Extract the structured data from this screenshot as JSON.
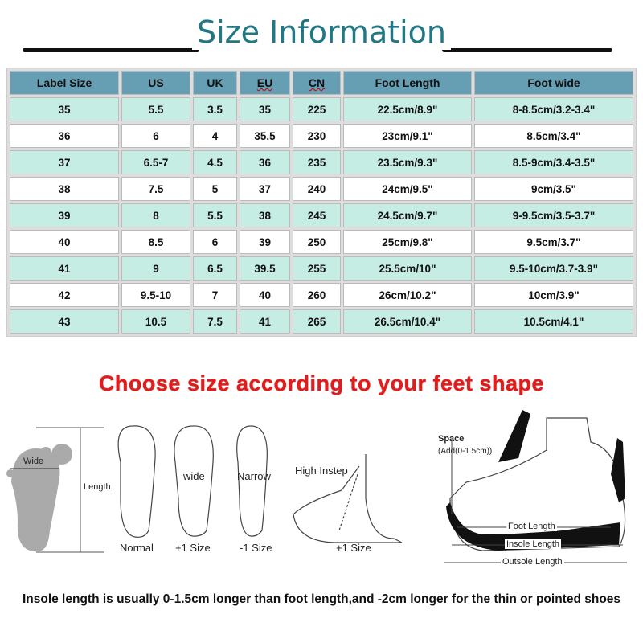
{
  "title": "Size Information",
  "table": {
    "headers": [
      "Label Size",
      "US",
      "UK",
      "EU",
      "CN",
      "Foot Length",
      "Foot wide"
    ],
    "rows": [
      [
        "35",
        "5.5",
        "3.5",
        "35",
        "225",
        "22.5cm/8.9\"",
        "8-8.5cm/3.2-3.4\""
      ],
      [
        "36",
        "6",
        "4",
        "35.5",
        "230",
        "23cm/9.1\"",
        "8.5cm/3.4\""
      ],
      [
        "37",
        "6.5-7",
        "4.5",
        "36",
        "235",
        "23.5cm/9.3\"",
        "8.5-9cm/3.4-3.5\""
      ],
      [
        "38",
        "7.5",
        "5",
        "37",
        "240",
        "24cm/9.5\"",
        "9cm/3.5\""
      ],
      [
        "39",
        "8",
        "5.5",
        "38",
        "245",
        "24.5cm/9.7\"",
        "9-9.5cm/3.5-3.7\""
      ],
      [
        "40",
        "8.5",
        "6",
        "39",
        "250",
        "25cm/9.8\"",
        "9.5cm/3.7\""
      ],
      [
        "41",
        "9",
        "6.5",
        "39.5",
        "255",
        "25.5cm/10\"",
        "9.5-10cm/3.7-3.9\""
      ],
      [
        "42",
        "9.5-10",
        "7",
        "40",
        "260",
        "26cm/10.2\"",
        "10cm/3.9\""
      ],
      [
        "43",
        "10.5",
        "7.5",
        "41",
        "265",
        "26.5cm/10.4\"",
        "10.5cm/4.1\""
      ]
    ]
  },
  "choose_heading": "Choose size according to your feet shape",
  "diagram": {
    "wide": "Wide",
    "length": "Length",
    "normal": "Normal",
    "wide_foot": "wide",
    "wide_size": "+1 Size",
    "narrow": "Narrow",
    "narrow_size": "-1 Size",
    "high_instep": "High Instep",
    "high_instep_size": "+1 Size",
    "space": "Space",
    "space_add": "(Add(0-1.5cm))",
    "foot_length": "Foot Length",
    "insole_length": "Insole Length",
    "outsole_length": "Outsole Length"
  },
  "note": "Insole length is usually 0-1.5cm longer than foot length,and -2cm longer for the thin or pointed shoes",
  "colors": {
    "title": "#227785",
    "header": "#669fb4",
    "row_alt": "#c6ede4",
    "heading_red": "#e21b1b"
  }
}
